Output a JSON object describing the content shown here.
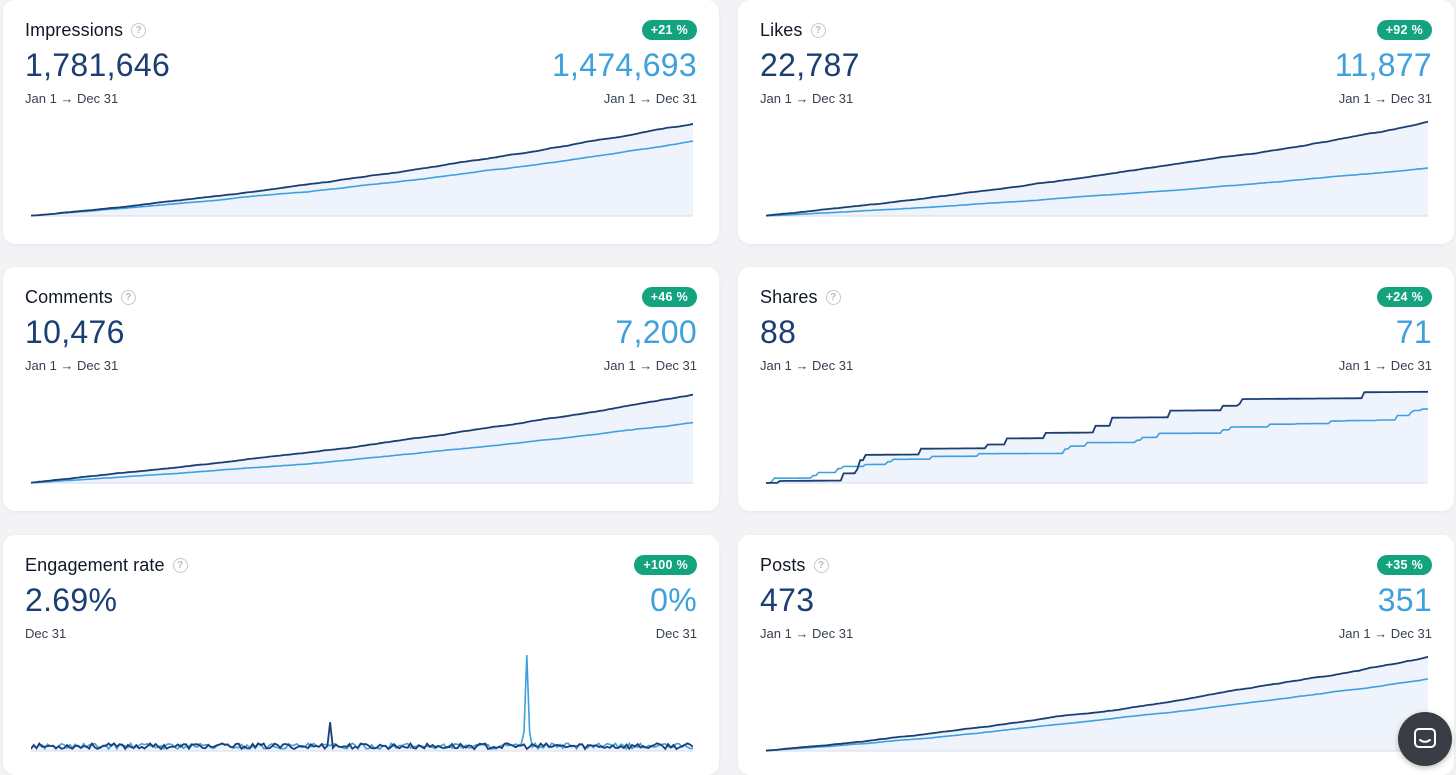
{
  "cards": [
    {
      "title": "Impressions",
      "badge": "+21 %",
      "value_current": "1,781,646",
      "value_previous": "1,474,693",
      "date_current": "Jan 1 → Dec 31",
      "date_previous": "Jan 1 → Dec 31",
      "mode": "cumulative",
      "end_current": 0.96,
      "end_previous": 0.78,
      "seed": 11
    },
    {
      "title": "Likes",
      "badge": "+92 %",
      "value_current": "22,787",
      "value_previous": "11,877",
      "date_current": "Jan 1 → Dec 31",
      "date_previous": "Jan 1 → Dec 31",
      "mode": "cumulative",
      "end_current": 0.98,
      "end_previous": 0.5,
      "seed": 23
    },
    {
      "title": "Comments",
      "badge": "+46 %",
      "value_current": "10,476",
      "value_previous": "7,200",
      "date_current": "Jan 1 → Dec 31",
      "date_previous": "Jan 1 → Dec 31",
      "mode": "cumulative",
      "end_current": 0.92,
      "end_previous": 0.63,
      "seed": 37
    },
    {
      "title": "Shares",
      "badge": "+24 %",
      "value_current": "88",
      "value_previous": "71",
      "date_current": "Jan 1 → Dec 31",
      "date_previous": "Jan 1 → Dec 31",
      "mode": "steps",
      "end_current": 0.95,
      "end_previous": 0.77,
      "seed": 41
    },
    {
      "title": "Engagement rate",
      "badge": "+100 %",
      "value_current": "2.69%",
      "value_previous": "0%",
      "date_current": "Dec 31",
      "date_previous": "Dec 31",
      "mode": "daily",
      "seed": 53
    },
    {
      "title": "Posts",
      "badge": "+35 %",
      "value_current": "473",
      "value_previous": "351",
      "date_current": "Jan 1 → Dec 31",
      "date_previous": "Jan 1 → Dec 31",
      "mode": "cumulative",
      "end_current": 0.98,
      "end_previous": 0.75,
      "seed": 67
    }
  ],
  "colors": {
    "current": "#1b3e73",
    "previous": "#3ea0dc",
    "fill": "#eef3fc",
    "badge": "#13a37f"
  },
  "icons": {
    "help": "question-circle-icon",
    "chat": "chat-bubble-icon"
  }
}
